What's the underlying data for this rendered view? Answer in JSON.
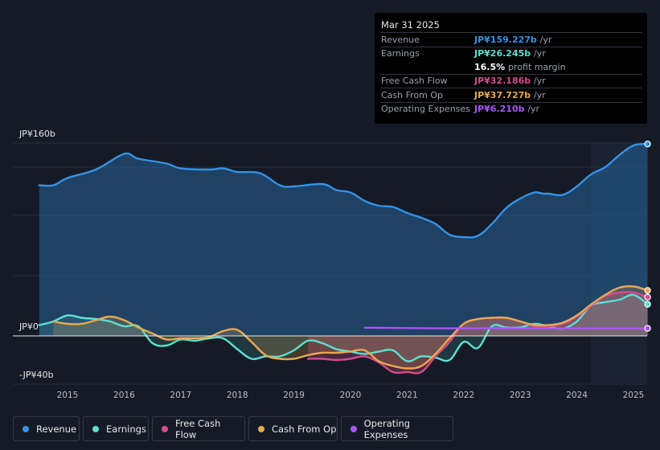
{
  "chart_data": {
    "type": "line",
    "title": "",
    "y_axis": {
      "label_top": "JP¥160b",
      "label_zero": "JP¥0",
      "label_bottom": "-JP¥40b",
      "ylim": [
        -40,
        160
      ],
      "unit": "JP¥ billions"
    },
    "x_ticks": [
      "2015",
      "2016",
      "2017",
      "2018",
      "2019",
      "2020",
      "2021",
      "2022",
      "2023",
      "2024",
      "2025"
    ],
    "forecast_shade_from": 2024.25,
    "series": [
      {
        "key": "revenue",
        "name": "Revenue",
        "color": "#3592e6",
        "fill": true,
        "points": [
          [
            2014.5,
            125
          ],
          [
            2014.75,
            125
          ],
          [
            2015.0,
            131
          ],
          [
            2015.5,
            138
          ],
          [
            2016.0,
            151
          ],
          [
            2016.25,
            147
          ],
          [
            2016.75,
            143
          ],
          [
            2017.0,
            139
          ],
          [
            2017.5,
            138
          ],
          [
            2017.75,
            139
          ],
          [
            2018.0,
            136
          ],
          [
            2018.4,
            135
          ],
          [
            2018.75,
            125
          ],
          [
            2019.0,
            124
          ],
          [
            2019.5,
            126
          ],
          [
            2019.75,
            121
          ],
          [
            2020.0,
            119
          ],
          [
            2020.25,
            112
          ],
          [
            2020.5,
            108
          ],
          [
            2020.75,
            107
          ],
          [
            2021.0,
            102
          ],
          [
            2021.25,
            98
          ],
          [
            2021.5,
            93
          ],
          [
            2021.75,
            84
          ],
          [
            2022.0,
            82
          ],
          [
            2022.25,
            83
          ],
          [
            2022.5,
            93
          ],
          [
            2022.75,
            106
          ],
          [
            2023.0,
            114
          ],
          [
            2023.25,
            119
          ],
          [
            2023.4,
            118
          ],
          [
            2023.5,
            118
          ],
          [
            2023.75,
            117
          ],
          [
            2024.0,
            124
          ],
          [
            2024.25,
            134
          ],
          [
            2024.5,
            140
          ],
          [
            2024.75,
            150
          ],
          [
            2025.0,
            158
          ],
          [
            2025.25,
            159.227
          ]
        ],
        "end_value": "JP¥159.227b /yr"
      },
      {
        "key": "earnings",
        "name": "Earnings",
        "color": "#5ce0d2",
        "fill": true,
        "points": [
          [
            2014.5,
            9
          ],
          [
            2014.75,
            12
          ],
          [
            2015.0,
            17
          ],
          [
            2015.25,
            15
          ],
          [
            2015.5,
            14
          ],
          [
            2015.75,
            12
          ],
          [
            2016.0,
            8
          ],
          [
            2016.25,
            8
          ],
          [
            2016.5,
            -6
          ],
          [
            2016.75,
            -8
          ],
          [
            2017.0,
            -3
          ],
          [
            2017.25,
            -4
          ],
          [
            2017.5,
            -2
          ],
          [
            2017.75,
            -2
          ],
          [
            2018.0,
            -11
          ],
          [
            2018.25,
            -19
          ],
          [
            2018.5,
            -17
          ],
          [
            2018.75,
            -17
          ],
          [
            2019.0,
            -12
          ],
          [
            2019.25,
            -4
          ],
          [
            2019.5,
            -6
          ],
          [
            2019.75,
            -11
          ],
          [
            2020.0,
            -13
          ],
          [
            2020.25,
            -15
          ],
          [
            2020.5,
            -13
          ],
          [
            2020.75,
            -12
          ],
          [
            2021.0,
            -21
          ],
          [
            2021.25,
            -17
          ],
          [
            2021.5,
            -18
          ],
          [
            2021.75,
            -20
          ],
          [
            2022.0,
            -5
          ],
          [
            2022.25,
            -10
          ],
          [
            2022.5,
            8
          ],
          [
            2022.75,
            7
          ],
          [
            2023.0,
            7
          ],
          [
            2023.25,
            10
          ],
          [
            2023.5,
            8
          ],
          [
            2023.75,
            6
          ],
          [
            2024.0,
            12
          ],
          [
            2024.25,
            25
          ],
          [
            2024.5,
            28
          ],
          [
            2024.75,
            30
          ],
          [
            2025.0,
            34
          ],
          [
            2025.25,
            26.245
          ]
        ],
        "end_value": "JP¥26.245b /yr"
      },
      {
        "key": "free_cash_flow",
        "name": "Free Cash Flow",
        "color": "#d94a8c",
        "fill": true,
        "points": [
          [
            2019.25,
            -19
          ],
          [
            2019.5,
            -19
          ],
          [
            2019.75,
            -20
          ],
          [
            2020.0,
            -19
          ],
          [
            2020.25,
            -17
          ],
          [
            2020.5,
            -22
          ],
          [
            2020.75,
            -30
          ],
          [
            2021.0,
            -30
          ],
          [
            2021.25,
            -30
          ],
          [
            2021.5,
            -17
          ],
          [
            2021.75,
            -5
          ],
          [
            2022.0,
            10
          ],
          [
            2022.25,
            14
          ],
          [
            2022.5,
            15
          ],
          [
            2022.75,
            15
          ],
          [
            2023.0,
            12
          ],
          [
            2023.25,
            8
          ],
          [
            2023.5,
            8
          ],
          [
            2023.75,
            10
          ],
          [
            2024.0,
            16
          ],
          [
            2024.25,
            25
          ],
          [
            2024.5,
            33
          ],
          [
            2024.75,
            36
          ],
          [
            2025.0,
            36
          ],
          [
            2025.25,
            32.186
          ]
        ],
        "end_value": "JP¥32.186b /yr"
      },
      {
        "key": "cash_from_op",
        "name": "Cash From Op",
        "color": "#e8a94f",
        "fill": true,
        "points": [
          [
            2014.75,
            12
          ],
          [
            2015.0,
            10
          ],
          [
            2015.25,
            10
          ],
          [
            2015.5,
            13
          ],
          [
            2015.75,
            16
          ],
          [
            2016.0,
            13
          ],
          [
            2016.25,
            7
          ],
          [
            2016.5,
            2
          ],
          [
            2016.75,
            -3
          ],
          [
            2017.0,
            -2
          ],
          [
            2017.25,
            -2
          ],
          [
            2017.5,
            -1
          ],
          [
            2017.75,
            4
          ],
          [
            2018.0,
            5
          ],
          [
            2018.25,
            -5
          ],
          [
            2018.5,
            -16
          ],
          [
            2018.75,
            -19
          ],
          [
            2019.0,
            -19
          ],
          [
            2019.25,
            -16
          ],
          [
            2019.5,
            -14
          ],
          [
            2019.75,
            -14
          ],
          [
            2020.0,
            -13
          ],
          [
            2020.25,
            -12
          ],
          [
            2020.5,
            -21
          ],
          [
            2020.75,
            -25
          ],
          [
            2021.0,
            -27
          ],
          [
            2021.25,
            -25
          ],
          [
            2021.5,
            -15
          ],
          [
            2021.75,
            -2
          ],
          [
            2022.0,
            10
          ],
          [
            2022.25,
            14
          ],
          [
            2022.5,
            15
          ],
          [
            2022.75,
            15
          ],
          [
            2023.0,
            12
          ],
          [
            2023.25,
            9
          ],
          [
            2023.5,
            9
          ],
          [
            2023.75,
            11
          ],
          [
            2024.0,
            17
          ],
          [
            2024.25,
            26
          ],
          [
            2024.5,
            34
          ],
          [
            2024.75,
            40
          ],
          [
            2025.0,
            41
          ],
          [
            2025.25,
            37.727
          ]
        ],
        "end_value": "JP¥37.727b /yr"
      },
      {
        "key": "operating_expenses",
        "name": "Operating Expenses",
        "color": "#a855f7",
        "fill": false,
        "points": [
          [
            2020.25,
            6.8
          ],
          [
            2020.75,
            6.6
          ],
          [
            2021.5,
            6.3
          ],
          [
            2022.5,
            6.3
          ],
          [
            2023.5,
            6.2
          ],
          [
            2024.5,
            6.2
          ],
          [
            2025.25,
            6.21
          ]
        ],
        "end_value": "JP¥6.210b /yr"
      }
    ]
  },
  "tooltip": {
    "date": "Mar 31 2025",
    "rows": [
      {
        "label": "Revenue",
        "value": "JP¥159.227b",
        "unit": "/yr",
        "color": "#3592e6"
      },
      {
        "label": "Earnings",
        "value": "JP¥26.245b",
        "unit": "/yr",
        "color": "#5ce0d2"
      },
      {
        "label": "",
        "margin_value": "16.5%",
        "margin_label": "profit margin"
      },
      {
        "label": "Free Cash Flow",
        "value": "JP¥32.186b",
        "unit": "/yr",
        "color": "#d94a8c"
      },
      {
        "label": "Cash From Op",
        "value": "JP¥37.727b",
        "unit": "/yr",
        "color": "#e8a94f"
      },
      {
        "label": "Operating Expenses",
        "value": "JP¥6.210b",
        "unit": "/yr",
        "color": "#a855f7"
      }
    ]
  },
  "legend": [
    {
      "label": "Revenue",
      "color": "#3592e6"
    },
    {
      "label": "Earnings",
      "color": "#5ce0d2"
    },
    {
      "label": "Free Cash Flow",
      "color": "#d94a8c"
    },
    {
      "label": "Cash From Op",
      "color": "#e8a94f"
    },
    {
      "label": "Operating Expenses",
      "color": "#a855f7"
    }
  ]
}
